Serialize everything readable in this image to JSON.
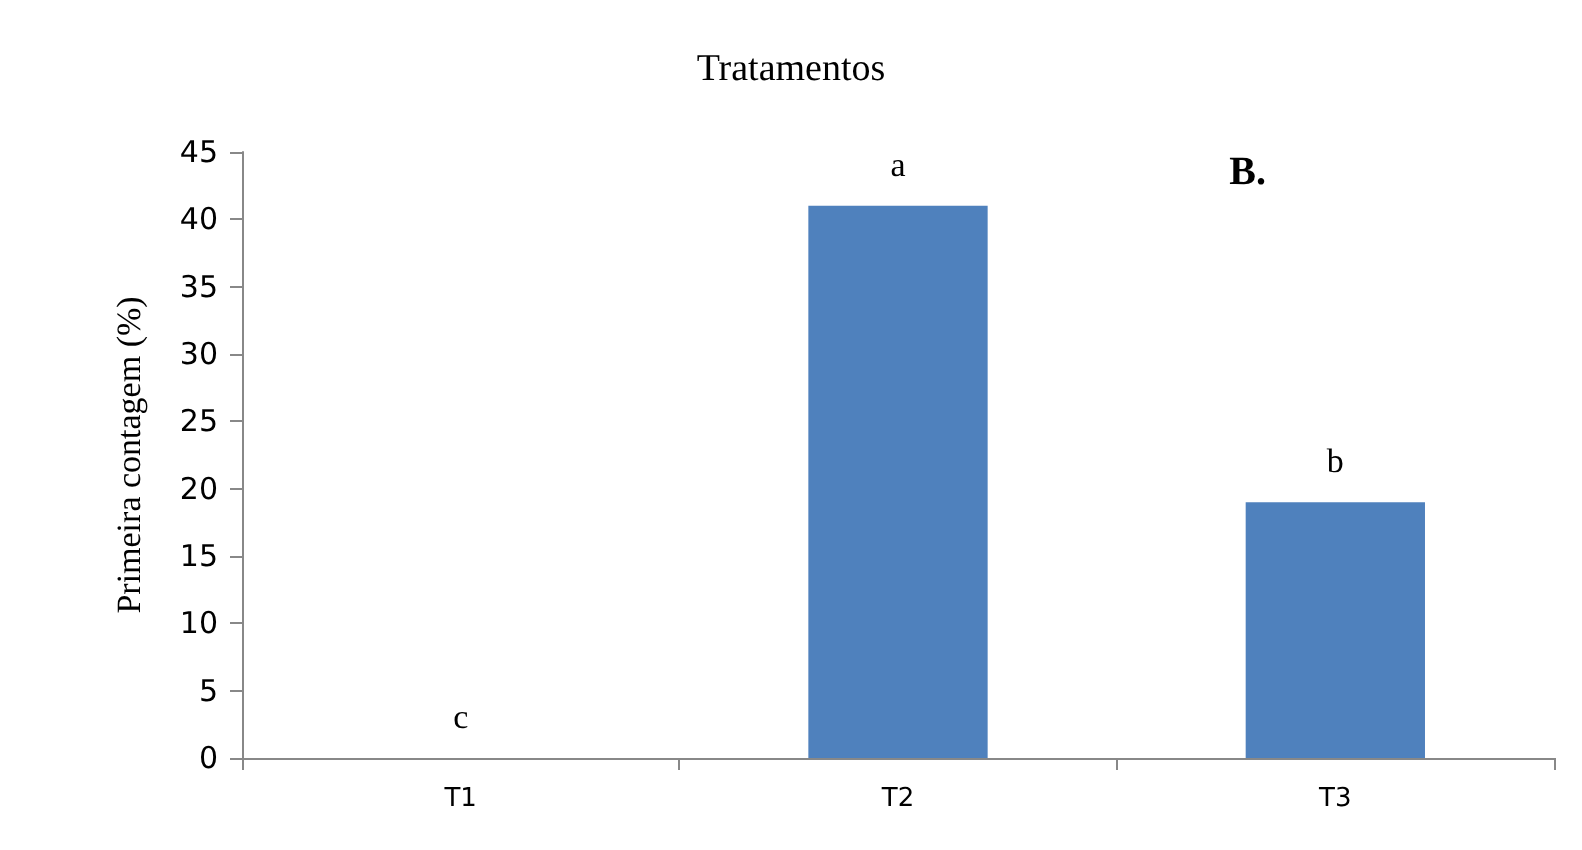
{
  "chart_data": {
    "type": "bar",
    "title": "Tratamentos",
    "ylabel": "Primeira contagem (%)",
    "categories": [
      "T1",
      "T2",
      "T3"
    ],
    "values": [
      0,
      41,
      19
    ],
    "value_labels": [
      "c",
      "a",
      "b"
    ],
    "color": "#4f81bd",
    "ylim": [
      0,
      45
    ],
    "yticks": [
      0,
      5,
      10,
      15,
      20,
      25,
      30,
      35,
      40,
      45
    ],
    "annotations": [
      "B."
    ],
    "grid": false
  }
}
